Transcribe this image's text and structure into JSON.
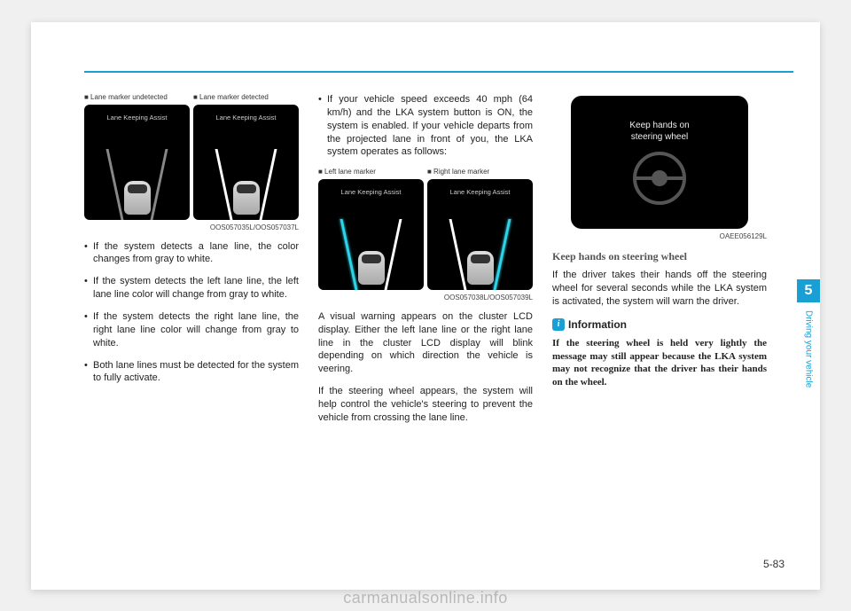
{
  "colors": {
    "accent": "#1a9fd4",
    "text": "#222",
    "cyan_lane": "#2dd4e8"
  },
  "side_tab": "5",
  "side_label": "Driving your vehicle",
  "page_number": "5-83",
  "watermark": "carmanualsonline.info",
  "col1": {
    "fig_captions": {
      "left": "■ Lane marker undetected",
      "right": "■ Lane marker detected"
    },
    "display_title": "Lane Keeping Assist",
    "img_id": "OOS057035L/OOS057037L",
    "bullets": [
      "If the system detects a lane line, the color changes from gray to white.",
      "If the system detects the left lane line, the left lane line color will change from gray to white.",
      "If the system detects the right lane line, the right lane line color will change from gray to white.",
      "Both lane lines must be detected for the system to fully activate."
    ]
  },
  "col2": {
    "top_bullet": "If your vehicle speed exceeds 40 mph (64 km/h) and the LKA system button is ON, the system is enabled. If your vehicle departs from the projected lane in front of you, the LKA system operates as follows:",
    "fig_captions": {
      "left": "■ Left lane marker",
      "right": "■ Right lane marker"
    },
    "display_title": "Lane Keeping Assist",
    "img_id": "OOS057038L/OOS057039L",
    "paras": [
      "A visual warning appears on the cluster LCD display. Either the left lane line or the right lane line in the cluster LCD display will blink depending on which direction the vehicle is veering.",
      "If the steering wheel appears, the system will help control the vehicle's steering to prevent the vehicle from crossing the lane line."
    ]
  },
  "col3": {
    "wheel_text_1": "Keep hands on",
    "wheel_text_2": "steering wheel",
    "img_id": "OAEE056129L",
    "subhead": "Keep hands on steering wheel",
    "para": "If the driver takes their hands off the steering wheel for several seconds while the LKA system is activated, the system will warn the driver.",
    "info_head": "Information",
    "info_para": "If the steering wheel is held very lightly the message may still appear because the LKA system may not recognize that the driver has their hands on the wheel."
  }
}
